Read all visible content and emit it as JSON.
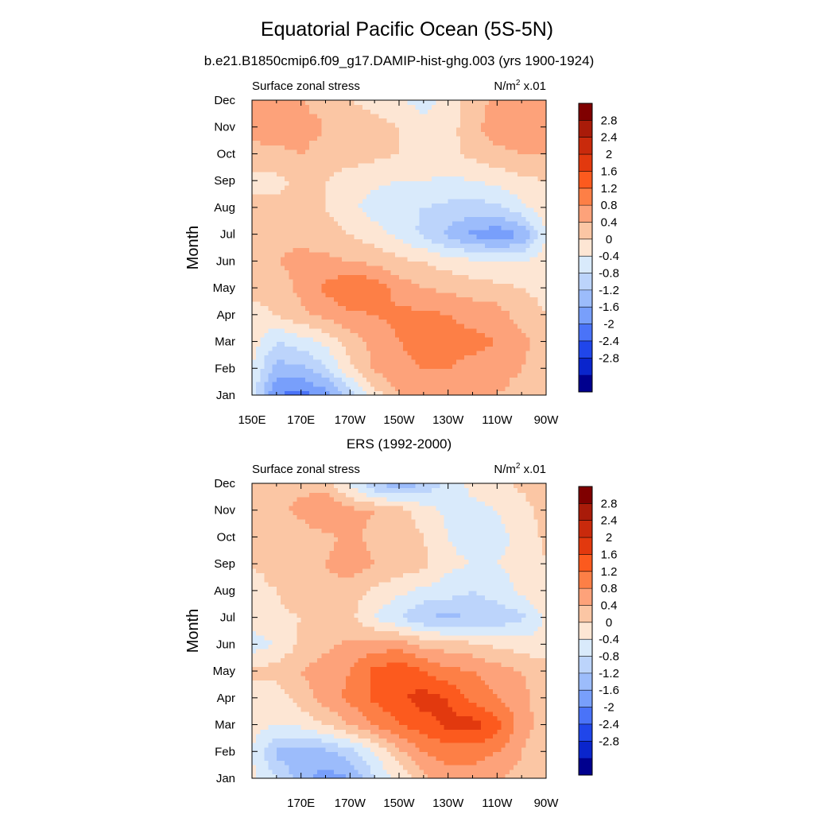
{
  "title": "Equatorial Pacific Ocean (5S-5N)",
  "subtitle": "b.e21.B1850cmip6.f09_g17.DAMIP-hist-ghg.003 (yrs 1900-1924)",
  "colorbar": {
    "labels": [
      "2.8",
      "2.4",
      "2",
      "1.6",
      "1.2",
      "0.8",
      "0.4",
      "0",
      "-0.4",
      "-0.8",
      "-1.2",
      "-1.6",
      "-2",
      "-2.4",
      "-2.8"
    ],
    "levels": [
      3.2,
      2.8,
      2.4,
      2.0,
      1.6,
      1.2,
      0.8,
      0.4,
      0,
      -0.4,
      -0.8,
      -1.2,
      -1.6,
      -2.0,
      -2.4,
      -2.8,
      -3.2
    ],
    "colors": [
      "#7f0000",
      "#a91b09",
      "#c92a0c",
      "#e2390e",
      "#fc5a1e",
      "#fd7f46",
      "#fda27a",
      "#fbc6a4",
      "#fde6d4",
      "#d9eafb",
      "#bcd4fb",
      "#9cbcfb",
      "#789ffb",
      "#4a73f8",
      "#2046ea",
      "#0a25cc",
      "#00008e"
    ]
  },
  "chart_data": [
    {
      "type": "heatmap",
      "title": "b.e21.B1850cmip6.f09_g17.DAMIP-hist-ghg.003 (yrs 1900-1924)",
      "left_label": "Surface zonal stress",
      "right_label_main": "N/m",
      "right_label_sup": "2",
      "right_label_tail": " x.01",
      "ylabel": "Month",
      "x_lon": [
        150,
        160,
        170,
        180,
        190,
        200,
        210,
        220,
        230,
        240,
        250,
        260,
        270
      ],
      "x_ticks": [
        {
          "lon": 150,
          "label": "150E"
        },
        {
          "lon": 170,
          "label": "170E"
        },
        {
          "lon": 190,
          "label": "170W"
        },
        {
          "lon": 210,
          "label": "150W"
        },
        {
          "lon": 230,
          "label": "130W"
        },
        {
          "lon": 250,
          "label": "110W"
        },
        {
          "lon": 270,
          "label": "90W"
        }
      ],
      "y_labels": [
        "Jan",
        "Feb",
        "Mar",
        "Apr",
        "May",
        "Jun",
        "Jul",
        "Aug",
        "Sep",
        "Oct",
        "Nov",
        "Dec"
      ],
      "values": [
        [
          -0.6,
          -2.0,
          -2.2,
          -1.8,
          -1.0,
          -0.2,
          0.4,
          0.6,
          0.6,
          0.5,
          0.4,
          0.2,
          0.1
        ],
        [
          -0.4,
          -1.4,
          -1.3,
          -0.9,
          -0.1,
          0.5,
          0.7,
          0.8,
          0.8,
          0.7,
          0.6,
          0.4,
          0.2
        ],
        [
          -0.2,
          -0.8,
          -0.6,
          -0.3,
          0.2,
          0.5,
          0.8,
          0.9,
          0.9,
          0.9,
          0.8,
          0.5,
          0.2
        ],
        [
          -0.2,
          0.0,
          0.3,
          0.5,
          0.7,
          0.8,
          0.9,
          0.9,
          0.8,
          0.7,
          0.6,
          0.2,
          0.0
        ],
        [
          0.2,
          0.2,
          0.5,
          0.9,
          1.2,
          1.1,
          0.6,
          0.4,
          0.3,
          0.2,
          0.1,
          0.0,
          -0.1
        ],
        [
          0.3,
          0.4,
          0.5,
          0.5,
          0.4,
          0.3,
          0.1,
          0.0,
          -0.2,
          -0.3,
          -0.4,
          -0.4,
          -0.2
        ],
        [
          0.2,
          0.3,
          0.3,
          0.2,
          0.0,
          -0.2,
          -0.5,
          -0.9,
          -1.3,
          -1.7,
          -1.9,
          -1.6,
          -0.4
        ],
        [
          0.1,
          0.1,
          0.0,
          0.0,
          -0.3,
          -0.6,
          -0.8,
          -0.8,
          -0.9,
          -1.0,
          -0.9,
          -0.5,
          -0.2
        ],
        [
          -0.1,
          -0.1,
          0.1,
          0.0,
          -0.2,
          -0.3,
          -0.4,
          -0.4,
          -0.5,
          -0.4,
          -0.3,
          -0.1,
          0.0
        ],
        [
          0.3,
          0.3,
          0.4,
          0.2,
          0.2,
          0.1,
          0.0,
          -0.1,
          -0.1,
          0.1,
          0.3,
          0.4,
          0.4
        ],
        [
          0.5,
          0.6,
          0.6,
          0.4,
          0.3,
          0.2,
          0.0,
          -0.3,
          -0.2,
          0.3,
          0.6,
          0.6,
          0.6
        ],
        [
          0.4,
          0.5,
          0.4,
          0.2,
          0.0,
          -0.2,
          -0.4,
          -0.5,
          -0.3,
          0.2,
          0.5,
          0.6,
          0.5
        ]
      ],
      "clim": [
        -3.2,
        3.2
      ]
    },
    {
      "type": "heatmap",
      "title": "ERS (1992-2000)",
      "left_label": "Surface zonal stress",
      "right_label_main": "N/m",
      "right_label_sup": "2",
      "right_label_tail": " x.01",
      "ylabel": "Month",
      "x_lon": [
        150,
        160,
        170,
        180,
        190,
        200,
        210,
        220,
        230,
        240,
        250,
        260,
        270
      ],
      "x_ticks": [
        {
          "lon": 170,
          "label": "170E"
        },
        {
          "lon": 190,
          "label": "170W"
        },
        {
          "lon": 210,
          "label": "150W"
        },
        {
          "lon": 230,
          "label": "130W"
        },
        {
          "lon": 250,
          "label": "110W"
        },
        {
          "lon": 270,
          "label": "90W"
        }
      ],
      "y_labels": [
        "Jan",
        "Feb",
        "Mar",
        "Apr",
        "May",
        "Jun",
        "Jul",
        "Aug",
        "Sep",
        "Oct",
        "Nov",
        "Dec"
      ],
      "values": [
        [
          -0.3,
          -0.8,
          -1.4,
          -1.8,
          -1.6,
          -0.8,
          -0.3,
          0.3,
          0.6,
          0.6,
          0.4,
          0.3,
          0.1
        ],
        [
          -0.4,
          -1.3,
          -1.5,
          -1.3,
          -1.0,
          -0.4,
          0.3,
          0.8,
          1.0,
          1.0,
          0.8,
          0.4,
          0.0
        ],
        [
          -0.2,
          -0.4,
          -0.3,
          0.0,
          0.4,
          0.8,
          1.2,
          1.4,
          1.7,
          1.8,
          1.4,
          0.6,
          0.2
        ],
        [
          -0.2,
          -0.3,
          0.2,
          0.6,
          0.9,
          1.3,
          1.5,
          1.8,
          1.6,
          1.1,
          0.8,
          0.5,
          0.2
        ],
        [
          0.1,
          0.2,
          0.4,
          0.6,
          0.8,
          1.3,
          1.5,
          1.2,
          0.9,
          0.8,
          0.6,
          0.4,
          0.2
        ],
        [
          -0.6,
          -0.4,
          0.1,
          0.3,
          0.5,
          0.6,
          0.6,
          0.3,
          0.2,
          0.1,
          -0.1,
          -0.2,
          -0.3
        ],
        [
          -0.2,
          -0.1,
          0.0,
          0.2,
          0.1,
          -0.4,
          -0.8,
          -1.2,
          -1.3,
          -1.2,
          -1.1,
          -0.9,
          -0.3
        ],
        [
          -0.1,
          0.0,
          0.3,
          0.3,
          0.2,
          -0.1,
          -0.3,
          -0.5,
          -0.6,
          -0.8,
          -0.6,
          -0.3,
          0.0
        ],
        [
          0.0,
          0.1,
          0.3,
          0.4,
          0.6,
          0.4,
          0.3,
          0.1,
          -0.3,
          -0.4,
          -0.4,
          -0.3,
          0.0
        ],
        [
          0.1,
          0.2,
          0.2,
          0.3,
          0.5,
          0.3,
          0.2,
          0.0,
          -0.4,
          -0.6,
          -0.5,
          -0.3,
          0.1
        ],
        [
          0.3,
          0.3,
          0.5,
          0.8,
          0.5,
          0.4,
          0.2,
          -0.2,
          -0.5,
          -0.5,
          -0.4,
          -0.2,
          0.2
        ],
        [
          0.3,
          0.4,
          0.3,
          0.2,
          -0.5,
          -1.2,
          -1.5,
          -1.2,
          -0.6,
          -0.3,
          -0.2,
          0.1,
          0.3
        ]
      ],
      "clim": [
        -3.2,
        3.2
      ]
    }
  ]
}
